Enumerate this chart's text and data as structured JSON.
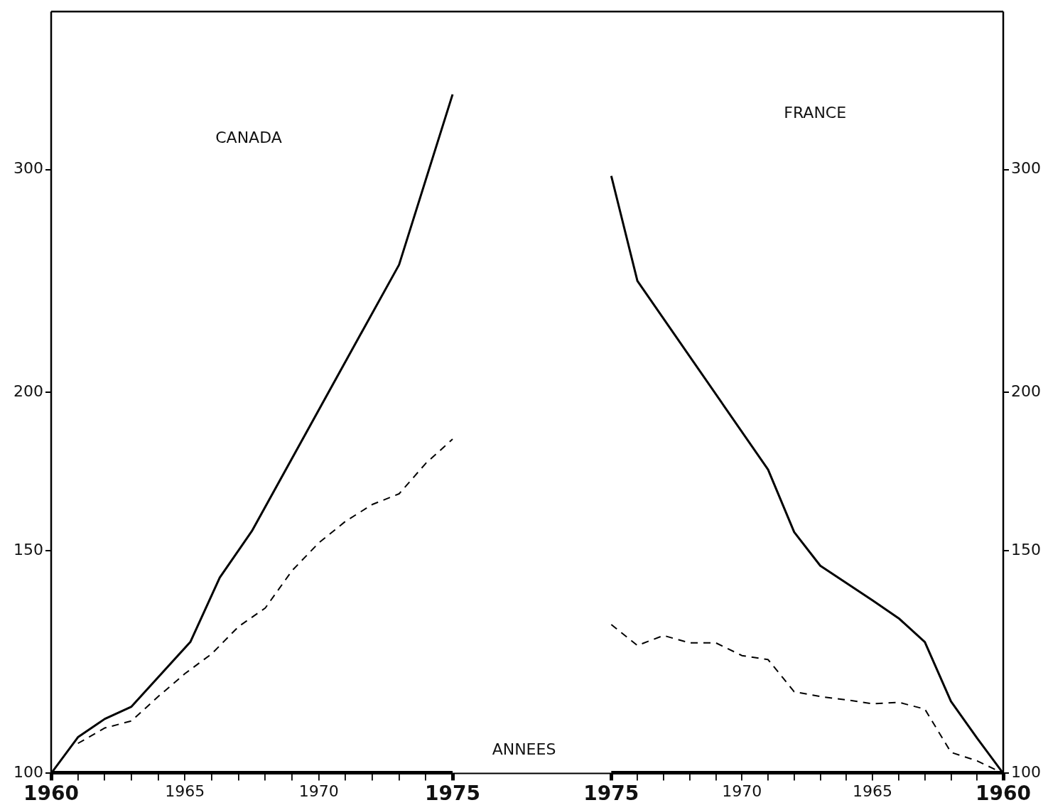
{
  "chart_data": [
    {
      "type": "line",
      "title": "CANADA",
      "xlabel": "ANNEES",
      "log": "y",
      "grid": false,
      "legend": false,
      "marker": "none",
      "xlim": [
        1960,
        1978
      ],
      "ylim": [
        100,
        400
      ],
      "yticks": [
        100,
        150,
        200,
        300
      ],
      "xticks": [
        1960,
        {
          "value": 1961,
          "label": null
        },
        {
          "value": 1962,
          "label": null
        },
        {
          "value": 1963,
          "label": null
        },
        {
          "value": 1964,
          "label": null
        },
        1965,
        {
          "value": 1966,
          "label": null
        },
        {
          "value": 1967,
          "label": null
        },
        {
          "value": 1968,
          "label": null
        },
        {
          "value": 1969,
          "label": null
        },
        1970,
        {
          "value": 1971,
          "label": null
        },
        {
          "value": 1972,
          "label": null
        },
        {
          "value": 1973,
          "label": null
        },
        {
          "value": 1974,
          "label": null
        },
        1975
      ],
      "series": [
        {
          "color": "#000000",
          "line_style": "solid",
          "x": [
            1960,
            1961,
            1962,
            1963,
            1965.2,
            1966.3,
            1967.5,
            1971,
            1973,
            1975
          ],
          "values": [
            100,
            106.8,
            110.4,
            112.9,
            127,
            142.8,
            155.4,
            211.6,
            252.3,
            344
          ]
        },
        {
          "color": "#000000",
          "line_style": "dashed",
          "x": [
            1961,
            1962,
            1963,
            1964,
            1965,
            1966,
            1967,
            1968,
            1969,
            1970,
            1971,
            1972,
            1973,
            1974,
            1975
          ],
          "values": [
            105.6,
            108.6,
            110,
            115,
            119.9,
            124.3,
            130.6,
            135.1,
            144.6,
            152.1,
            158.2,
            163.1,
            166.3,
            175.8,
            183.7
          ]
        }
      ]
    },
    {
      "type": "line",
      "title": "FRANCE",
      "log": "y",
      "grid": false,
      "legend": false,
      "marker": "none",
      "xlim": [
        1978,
        1960
      ],
      "ylim": [
        100,
        400
      ],
      "yticks": [
        100,
        150,
        200,
        300
      ],
      "xticks": [
        1975,
        {
          "value": 1974,
          "label": null
        },
        {
          "value": 1973,
          "label": null
        },
        {
          "value": 1972,
          "label": null
        },
        {
          "value": 1971,
          "label": null
        },
        1970,
        {
          "value": 1969,
          "label": null
        },
        {
          "value": 1968,
          "label": null
        },
        {
          "value": 1967,
          "label": null
        },
        {
          "value": 1966,
          "label": null
        },
        1965,
        {
          "value": 1964,
          "label": null
        },
        {
          "value": 1963,
          "label": null
        },
        {
          "value": 1962,
          "label": null
        },
        {
          "value": 1961,
          "label": null
        },
        1960
      ],
      "series": [
        {
          "color": "#000000",
          "line_style": "solid",
          "x": [
            1975,
            1974,
            1969,
            1968,
            1967,
            1965,
            1964,
            1963,
            1962,
            1961,
            1960
          ],
          "values": [
            296.6,
            245,
            173.8,
            155.1,
            145.9,
            137,
            132.6,
            127,
            114,
            106.6,
            100
          ]
        },
        {
          "color": "#000000",
          "line_style": "dashed",
          "x": [
            1975,
            1974,
            1973,
            1972,
            1971,
            1970,
            1969,
            1968,
            1967,
            1966,
            1965,
            1964,
            1963,
            1962,
            1961,
            1960
          ],
          "values": [
            131.1,
            126.2,
            128.5,
            126.8,
            126.8,
            123.9,
            123,
            116,
            115,
            114.3,
            113.5,
            113.8,
            112.4,
            103.9,
            102.3,
            100
          ]
        }
      ]
    }
  ]
}
